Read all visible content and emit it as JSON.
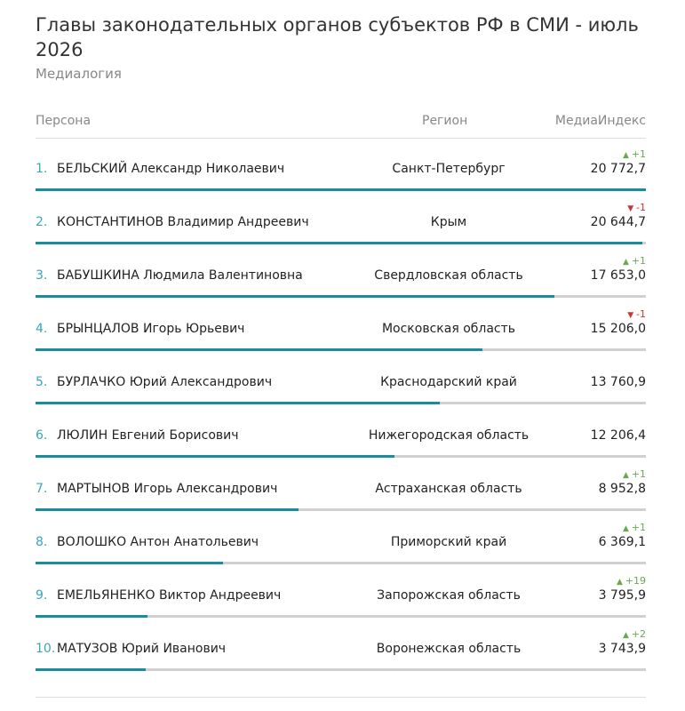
{
  "header": {
    "title": "Главы законодательных органов субъектов РФ в СМИ - июль 2026",
    "subtitle": "Медиалогия"
  },
  "table": {
    "columns": [
      "Персона",
      "Регион",
      "МедиаИндекс"
    ],
    "rows": [
      {
        "rank": "1.",
        "name": "БЕЛЬСКИЙ Александр Николаевич",
        "region": "Санкт-Петербург",
        "value": 20772.7,
        "value_label": "20 772,7",
        "change": 1,
        "change_label": "+1"
      },
      {
        "rank": "2.",
        "name": "КОНСТАНТИНОВ Владимир Андреевич",
        "region": "Крым",
        "value": 20644.7,
        "value_label": "20 644,7",
        "change": -1,
        "change_label": "-1"
      },
      {
        "rank": "3.",
        "name": "БАБУШКИНА Людмила Валентиновна",
        "region": "Свердловская область",
        "value": 17653.0,
        "value_label": "17 653,0",
        "change": 1,
        "change_label": "+1"
      },
      {
        "rank": "4.",
        "name": "БРЫНЦАЛОВ Игорь Юрьевич",
        "region": "Московская область",
        "value": 15206.0,
        "value_label": "15 206,0",
        "change": -1,
        "change_label": "-1"
      },
      {
        "rank": "5.",
        "name": "БУРЛАЧКО Юрий Александрович",
        "region": "Краснодарский край",
        "value": 13760.9,
        "value_label": "13 760,9"
      },
      {
        "rank": "6.",
        "name": "ЛЮЛИН Евгений Борисович",
        "region": "Нижегородская область",
        "value": 12206.4,
        "value_label": "12 206,4"
      },
      {
        "rank": "7.",
        "name": "МАРТЫНОВ Игорь Александрович",
        "region": "Астраханская область",
        "value": 8952.8,
        "value_label": "8 952,8",
        "change": 1,
        "change_label": "+1"
      },
      {
        "rank": "8.",
        "name": "ВОЛОШКО Антон Анатольевич",
        "region": "Приморский край",
        "value": 6369.1,
        "value_label": "6 369,1",
        "change": 1,
        "change_label": "+1"
      },
      {
        "rank": "9.",
        "name": "ЕМЕЛЬЯНЕНКО Виктор Андреевич",
        "region": "Запорожская область",
        "value": 3795.9,
        "value_label": "3 795,9",
        "change": 19,
        "change_label": "+19"
      },
      {
        "rank": "10.",
        "name": "МАТУЗОВ Юрий Иванович",
        "region": "Воронежская область",
        "value": 3743.9,
        "value_label": "3 743,9",
        "change": 2,
        "change_label": "+2"
      }
    ]
  }
}
